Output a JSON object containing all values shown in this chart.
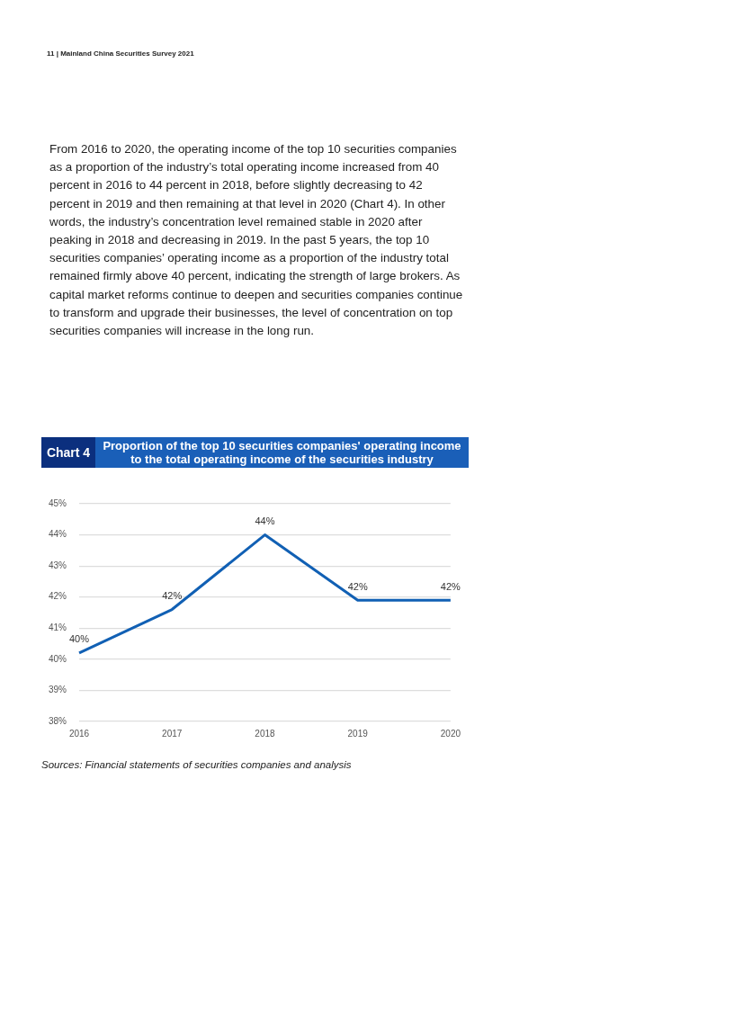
{
  "chart_data": {
    "type": "line",
    "subtitle": "Chart 4",
    "title": "Proportion of the top 10 securities companies' operating income to the total operating income of the securities industry",
    "categories": [
      "2016",
      "2017",
      "2018",
      "2019",
      "2020"
    ],
    "series": [
      {
        "color": "#1160b4",
        "values": [
          40.2,
          41.6,
          44.0,
          41.9,
          41.9
        ],
        "value_labels": [
          "40%",
          "42%",
          "44%",
          "42%",
          "42%"
        ]
      }
    ],
    "ylim": [
      38,
      45
    ],
    "yticks": [
      {
        "value": 38,
        "label": "38%"
      },
      {
        "value": 39,
        "label": "39%"
      },
      {
        "value": 40,
        "label": "40%"
      },
      {
        "value": 41,
        "label": "41%"
      },
      {
        "value": 42,
        "label": "42%"
      },
      {
        "value": 43,
        "label": "43%"
      },
      {
        "value": 44,
        "label": "44%"
      },
      {
        "value": 45,
        "label": "45%"
      }
    ],
    "grid": "y",
    "legend": false,
    "marker": "none",
    "line_style": "solid",
    "annotations": [
      "11 | Mainland China Securities Survey 2021",
      "From 2016 to 2020, the operating income of the top 10 securities companies as a proportion of the industry’s total operating income increased from 40 percent in 2016 to 44 percent in 2018, before slightly decreasing to 42 percent in 2019 and then remaining at that level in 2020 (Chart 4). In other words, the industry’s concentration level remained stable in 2020 after peaking in 2018 and decreasing in 2019. In the past 5 years, the top 10 securities companies’ operating income as a proportion of the industry total remained firmly above 40 percent, indicating the strength of large brokers. As capital market reforms continue to deepen and securities companies continue to transform and upgrade their businesses, the level of concentration on top securities companies will increase in the long run.",
      "Sources: Financial statements of securities companies and analysis"
    ]
  }
}
